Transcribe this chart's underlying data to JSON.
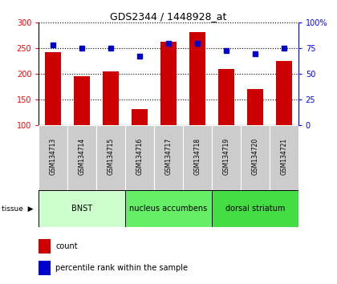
{
  "title": "GDS2344 / 1448928_at",
  "samples": [
    "GSM134713",
    "GSM134714",
    "GSM134715",
    "GSM134716",
    "GSM134717",
    "GSM134718",
    "GSM134719",
    "GSM134720",
    "GSM134721"
  ],
  "counts": [
    243,
    195,
    204,
    131,
    263,
    281,
    210,
    170,
    225
  ],
  "percentiles": [
    78,
    75,
    75,
    67,
    80,
    80,
    73,
    70,
    75
  ],
  "ylim_left": [
    100,
    300
  ],
  "ylim_right": [
    0,
    100
  ],
  "left_ticks": [
    100,
    150,
    200,
    250,
    300
  ],
  "right_ticks": [
    0,
    25,
    50,
    75,
    100
  ],
  "bar_color": "#cc0000",
  "dot_color": "#0000cc",
  "bar_width": 0.55,
  "tissues": [
    {
      "label": "BNST",
      "start": 0,
      "end": 3,
      "color": "#ccffcc"
    },
    {
      "label": "nucleus accumbens",
      "start": 3,
      "end": 6,
      "color": "#66ee66"
    },
    {
      "label": "dorsal striatum",
      "start": 6,
      "end": 9,
      "color": "#44dd44"
    }
  ],
  "legend_count": "count",
  "legend_pct": "percentile rank within the sample",
  "background_color": "#ffffff"
}
